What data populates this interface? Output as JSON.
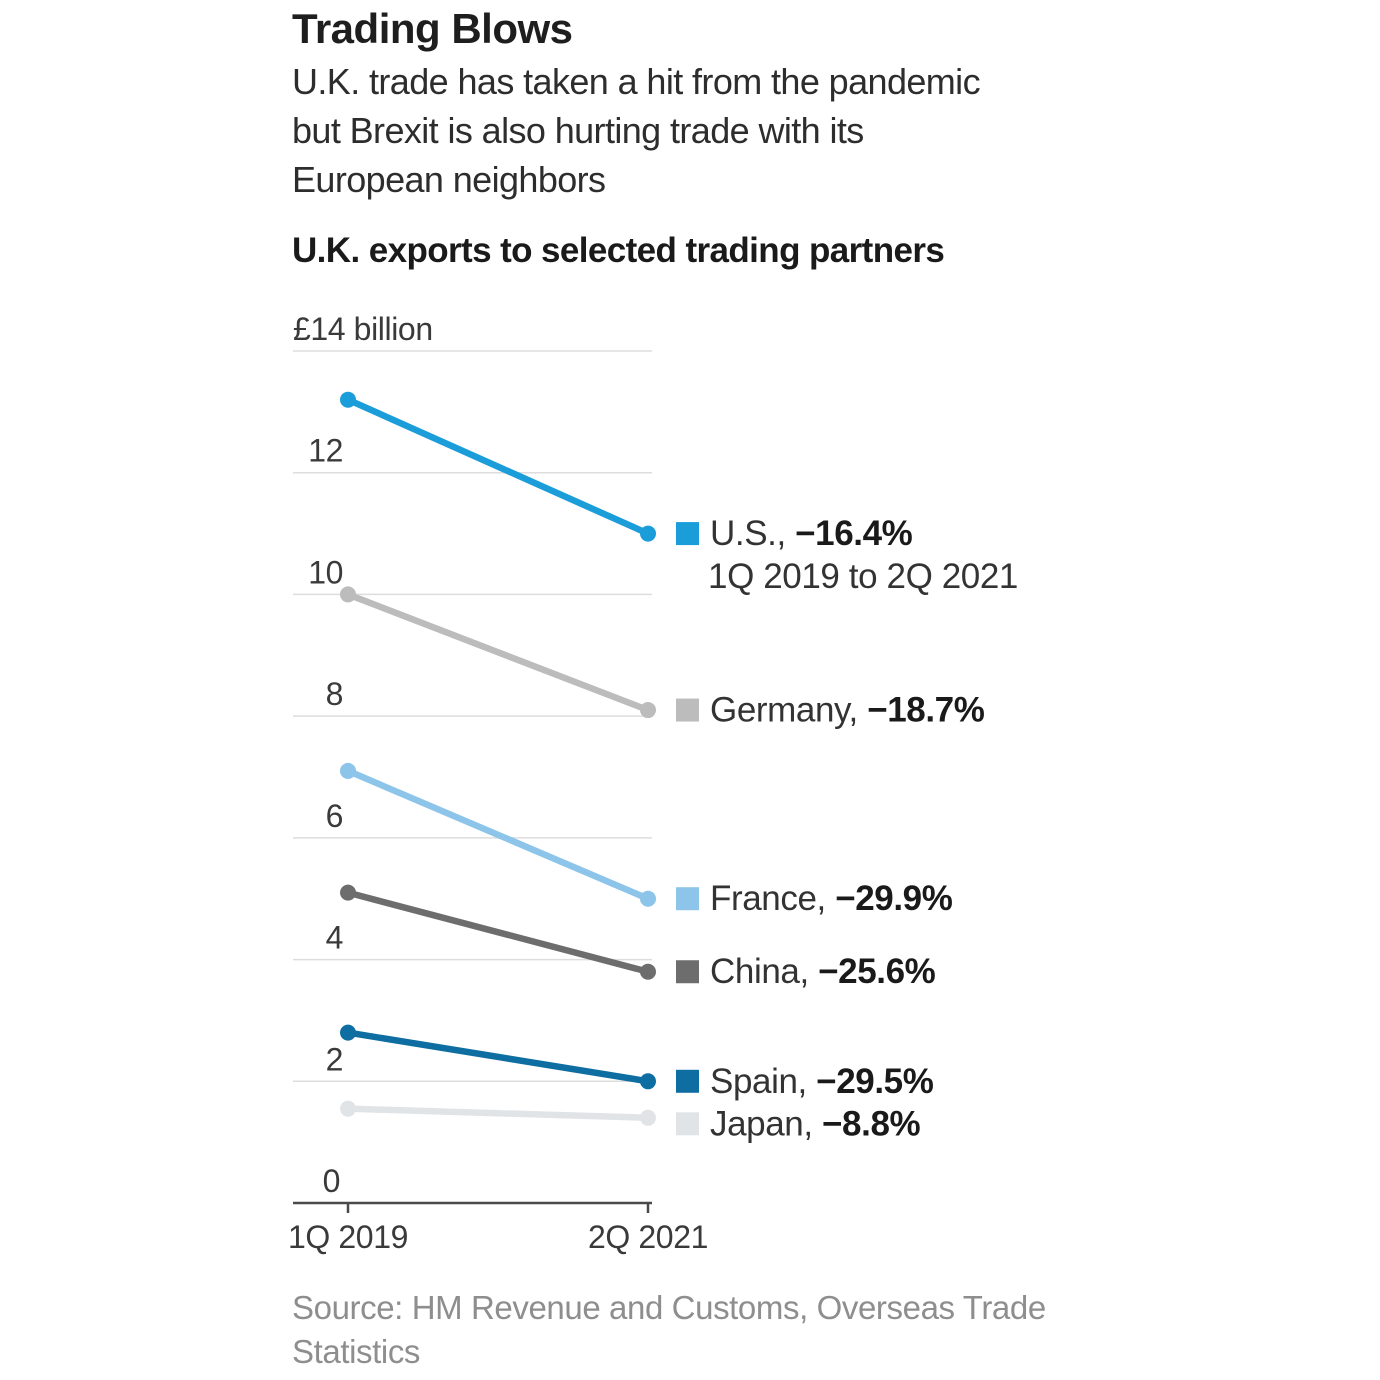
{
  "header": {
    "title": "Trading Blows",
    "subtitle_lines": [
      "U.K. trade has taken a hit from the pandemic",
      "but Brexit is also hurting trade with its",
      "European neighbors"
    ],
    "chart_heading": "U.K. exports to selected trading partners"
  },
  "chart_data": {
    "type": "line",
    "variant": "slope",
    "title": "U.K. exports to selected trading partners",
    "unit": "£ billion",
    "ytick_top_label": "£14 billion",
    "x": [
      "1Q 2019",
      "2Q 2021"
    ],
    "xlabel": "",
    "ylabel": "£ billion",
    "ylim": [
      0,
      14
    ],
    "yticks": [
      0,
      2,
      4,
      6,
      8,
      10,
      12,
      14
    ],
    "grid": true,
    "legend_position": "right of line endpoints",
    "series": [
      {
        "name": "U.S.",
        "values": [
          13.2,
          11.0
        ],
        "change": "−16.4%",
        "color": "#1b9dd9",
        "note": "1Q 2019 to 2Q 2021"
      },
      {
        "name": "Germany",
        "values": [
          10.0,
          8.1
        ],
        "change": "−18.7%",
        "color": "#bcbcbc"
      },
      {
        "name": "France",
        "values": [
          7.1,
          5.0
        ],
        "change": "−29.9%",
        "color": "#8cc4ea"
      },
      {
        "name": "China",
        "values": [
          5.1,
          3.8
        ],
        "change": "−25.6%",
        "color": "#6d6d6d"
      },
      {
        "name": "Spain",
        "values": [
          2.8,
          2.0
        ],
        "change": "−29.5%",
        "color": "#0e6da1"
      },
      {
        "name": "Japan",
        "values": [
          1.55,
          1.4
        ],
        "change": "−8.8%",
        "color": "#e1e4e7"
      }
    ]
  },
  "colors": {
    "grid": "#dddddd",
    "axis": "#4a4a4a",
    "tick_label": "#3a3a3a",
    "legend_name": "#333333",
    "legend_value": "#1a1a1a"
  },
  "source_lines": [
    "Source: HM Revenue and Customs, Overseas Trade",
    "Statistics"
  ]
}
